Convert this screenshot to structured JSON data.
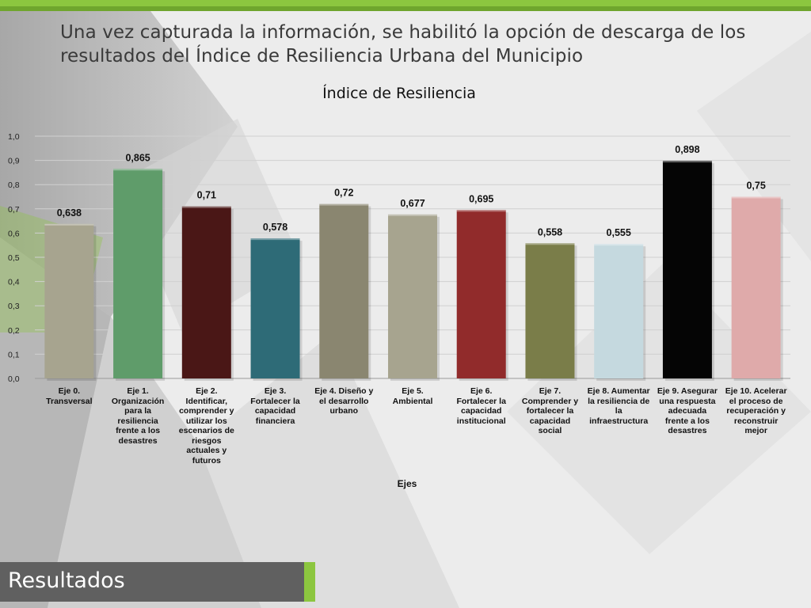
{
  "slide": {
    "title": "Una vez capturada la información, se habilitó la opción de descarga de los resultados del Índice de Resiliencia Urbana del Municipio",
    "footer_label": "Resultados",
    "accent_color": "#8cc63f"
  },
  "chart_data": {
    "type": "bar",
    "title": "Índice de Resiliencia",
    "xlabel": "Ejes",
    "ylabel": "",
    "ylim": [
      0,
      1.0
    ],
    "yticks": [
      "0,0",
      "0,1",
      "0,2",
      "0,3",
      "0,4",
      "0,5",
      "0,6",
      "0,7",
      "0,8",
      "0,9",
      "1,0"
    ],
    "grid": true,
    "categories": [
      "Eje 0.\nTransversal",
      "Eje 1.\nOrganización\npara la\nresiliencia\nfrente a los\ndesastres",
      "Eje 2.\nIdentificar,\ncomprender y\nutilizar los\nescenarios de\nriesgos\nactuales y\nfuturos",
      "Eje 3.\nFortalecer la\ncapacidad\nfinanciera",
      "Eje 4. Diseño y\nel desarrollo\nurbano",
      "Eje 5.\nAmbiental",
      "Eje 6.\nFortalecer la\ncapacidad\ninstitucional",
      "Eje 7.\nComprender y\nfortalecer la\ncapacidad\nsocial",
      "Eje 8. Aumentar\nla resiliencia de\nla\ninfraestructura",
      "Eje 9. Asegurar\nuna respuesta\nadecuada\nfrente a los\ndesastres",
      "Eje 10. Acelerar\nel proceso de\nrecuperación y\nreconstruir\nmejor"
    ],
    "values": [
      0.638,
      0.865,
      0.71,
      0.578,
      0.72,
      0.677,
      0.695,
      0.558,
      0.555,
      0.898,
      0.75
    ],
    "value_labels": [
      "0,638",
      "0,865",
      "0,71",
      "0,578",
      "0,72",
      "0,677",
      "0,695",
      "0,558",
      "0,555",
      "0,898",
      "0,75"
    ],
    "colors": [
      "#a7a48f",
      "#5f9c6a",
      "#4a1716",
      "#2e6b77",
      "#8a8670",
      "#a7a48f",
      "#912b2b",
      "#7a7d49",
      "#c5d9df",
      "#050505",
      "#dfaaaa"
    ]
  }
}
